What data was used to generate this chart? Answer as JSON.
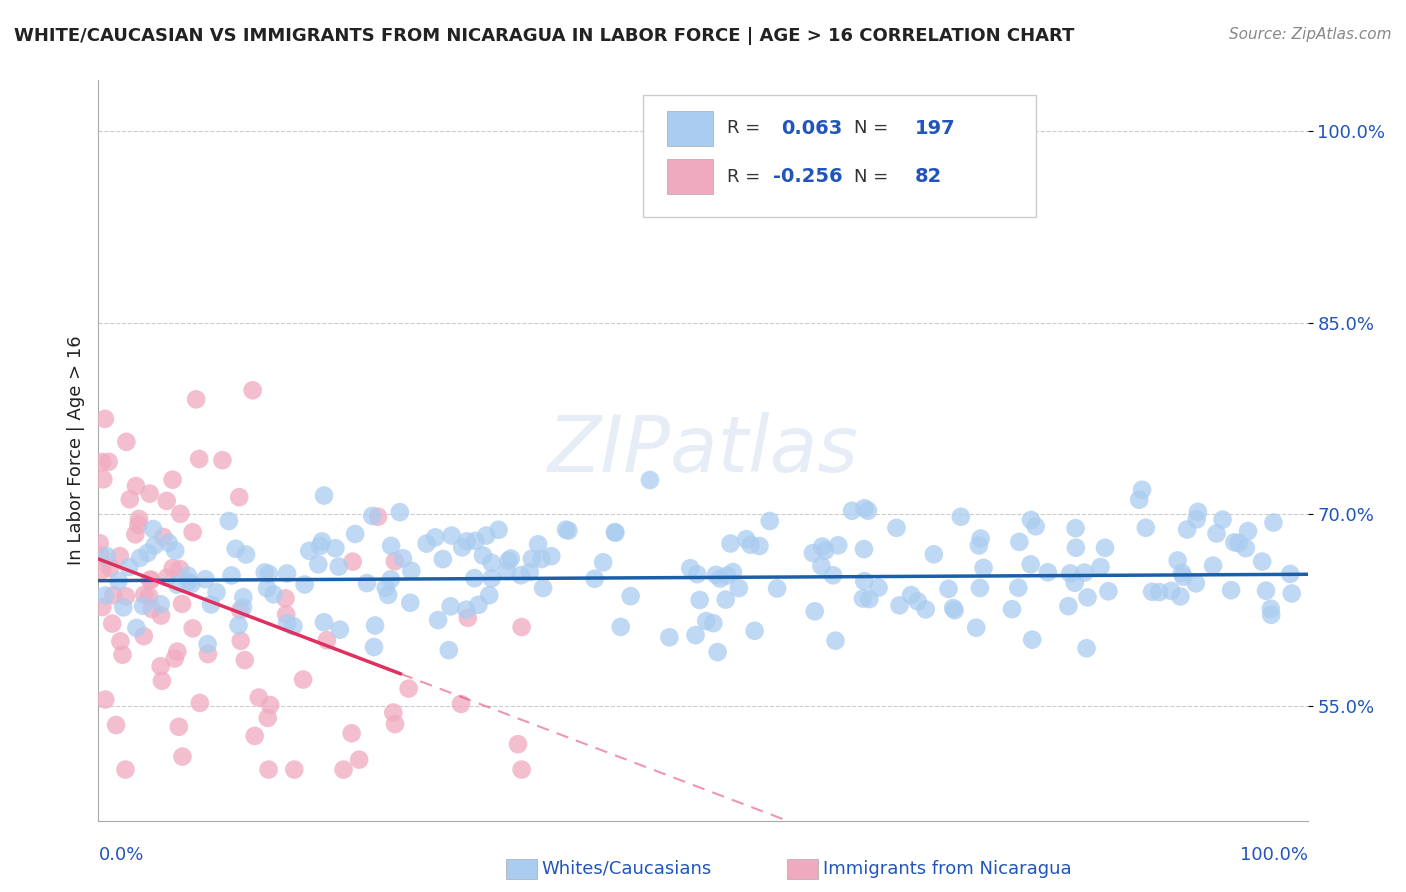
{
  "title": "WHITE/CAUCASIAN VS IMMIGRANTS FROM NICARAGUA IN LABOR FORCE | AGE > 16 CORRELATION CHART",
  "source": "Source: ZipAtlas.com",
  "ylabel": "In Labor Force | Age > 16",
  "watermark": "ZIPatlas",
  "blue_R": 0.063,
  "blue_N": 197,
  "pink_R": -0.256,
  "pink_N": 82,
  "blue_color": "#aaccf0",
  "pink_color": "#f0aac0",
  "blue_line_color": "#1a5fa8",
  "pink_line_color": "#e03060",
  "xlim": [
    0.0,
    1.0
  ],
  "ylim": [
    0.46,
    1.04
  ],
  "yticks": [
    0.55,
    0.7,
    0.85,
    1.0
  ],
  "ytick_labels": [
    "55.0%",
    "70.0%",
    "85.0%",
    "100.0%"
  ],
  "legend_blue_label": "Whites/Caucasians",
  "legend_pink_label": "Immigrants from Nicaragua",
  "blue_trend_intercept": 0.648,
  "blue_trend_slope": 0.005,
  "pink_trend_intercept": 0.665,
  "pink_trend_slope": -0.36,
  "title_color": "#222222",
  "source_color": "#888888",
  "axis_label_color": "#2255bb",
  "grid_color": "#cccccc",
  "background_color": "#ffffff"
}
